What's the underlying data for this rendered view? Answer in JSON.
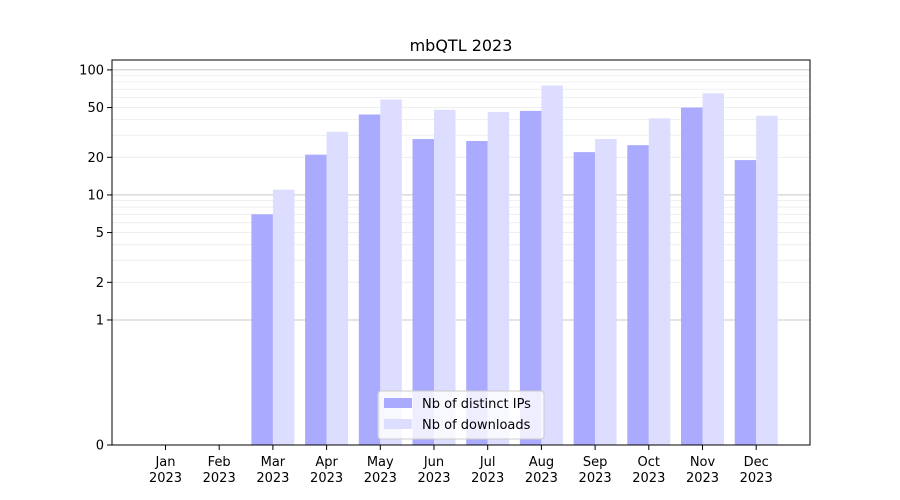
{
  "chart_data": {
    "type": "bar",
    "title": "mbQTL 2023",
    "xlabel": "",
    "ylabel": "",
    "y_scale": "symlog",
    "ylim": [
      0,
      120
    ],
    "grid": true,
    "legend_position": "bottom-center",
    "categories": [
      [
        "Jan",
        "2023"
      ],
      [
        "Feb",
        "2023"
      ],
      [
        "Mar",
        "2023"
      ],
      [
        "Apr",
        "2023"
      ],
      [
        "May",
        "2023"
      ],
      [
        "Jun",
        "2023"
      ],
      [
        "Jul",
        "2023"
      ],
      [
        "Aug",
        "2023"
      ],
      [
        "Sep",
        "2023"
      ],
      [
        "Oct",
        "2023"
      ],
      [
        "Nov",
        "2023"
      ],
      [
        "Dec",
        "2023"
      ]
    ],
    "y_ticks": [
      {
        "value": 0,
        "label": "0"
      },
      {
        "value": 1,
        "label": "1"
      },
      {
        "value": 2,
        "label": "2"
      },
      {
        "value": 5,
        "label": "5"
      },
      {
        "value": 10,
        "label": "10"
      },
      {
        "value": 20,
        "label": "20"
      },
      {
        "value": 50,
        "label": "50"
      },
      {
        "value": 100,
        "label": "100"
      }
    ],
    "series": [
      {
        "name": "Nb of distinct IPs",
        "color": "#aaaaff",
        "values": [
          0,
          0,
          7,
          21,
          44,
          28,
          27,
          47,
          22,
          25,
          50,
          19
        ]
      },
      {
        "name": "Nb of downloads",
        "color": "#ddddff",
        "values": [
          0,
          0,
          11,
          32,
          58,
          48,
          46,
          75,
          28,
          41,
          65,
          43
        ]
      }
    ]
  }
}
